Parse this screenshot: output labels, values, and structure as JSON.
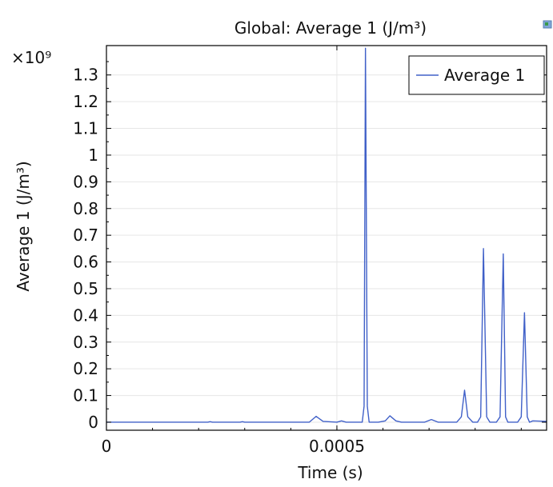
{
  "chart_data": {
    "type": "line",
    "title": "Global: Average 1 (J/m³)",
    "xlabel": "Time (s)",
    "ylabel": "Average 1 (J/m³)",
    "y_multiplier": "×10⁹",
    "xlim": [
      0,
      0.000955
    ],
    "ylim": [
      -0.03,
      1.41
    ],
    "x_ticks": [
      {
        "value": 0,
        "label": "0"
      },
      {
        "value": 0.0005,
        "label": "0.0005"
      }
    ],
    "y_ticks": [
      {
        "value": 0,
        "label": "0"
      },
      {
        "value": 0.1,
        "label": "0.1"
      },
      {
        "value": 0.2,
        "label": "0.2"
      },
      {
        "value": 0.3,
        "label": "0.3"
      },
      {
        "value": 0.4,
        "label": "0.4"
      },
      {
        "value": 0.5,
        "label": "0.5"
      },
      {
        "value": 0.6,
        "label": "0.6"
      },
      {
        "value": 0.7,
        "label": "0.7"
      },
      {
        "value": 0.8,
        "label": "0.8"
      },
      {
        "value": 0.9,
        "label": "0.9"
      },
      {
        "value": 1,
        "label": "1"
      },
      {
        "value": 1.1,
        "label": "1.1"
      },
      {
        "value": 1.2,
        "label": "1.2"
      },
      {
        "value": 1.3,
        "label": "1.3"
      }
    ],
    "grid": true,
    "legend_position": "top-right",
    "series": [
      {
        "name": "Average 1",
        "color": "#4060c8",
        "x": [
          0,
          0.00022,
          0.000225,
          0.00023,
          0.00029,
          0.000295,
          0.0003,
          0.00044,
          0.000455,
          0.00047,
          0.0005,
          0.00051,
          0.00052,
          0.00054,
          0.000555,
          0.000559,
          0.000562,
          0.000566,
          0.00057,
          0.000578,
          0.00059,
          0.000605,
          0.000615,
          0.000628,
          0.00064,
          0.000655,
          0.00069,
          0.000705,
          0.00072,
          0.00076,
          0.00077,
          0.000777,
          0.000784,
          0.000795,
          0.000805,
          0.000812,
          0.000818,
          0.000825,
          0.000832,
          0.000846,
          0.000854,
          0.000861,
          0.000866,
          0.000871,
          0.000878,
          0.000892,
          0.0009,
          0.000907,
          0.000913,
          0.000918,
          0.000925,
          0.000955
        ],
        "values": [
          0,
          0,
          0.002,
          0,
          0,
          0.002,
          0,
          0,
          0.022,
          0.003,
          0,
          0.005,
          0,
          0,
          0,
          0.06,
          1.4,
          0.06,
          0,
          0,
          0,
          0.005,
          0.024,
          0.005,
          0,
          0,
          0,
          0.01,
          0,
          0,
          0.02,
          0.12,
          0.02,
          0,
          0,
          0.02,
          0.65,
          0.02,
          0,
          0,
          0.02,
          0.63,
          0.02,
          0,
          0,
          0,
          0.02,
          0.41,
          0.02,
          0,
          0.005,
          0.003
        ]
      }
    ]
  }
}
